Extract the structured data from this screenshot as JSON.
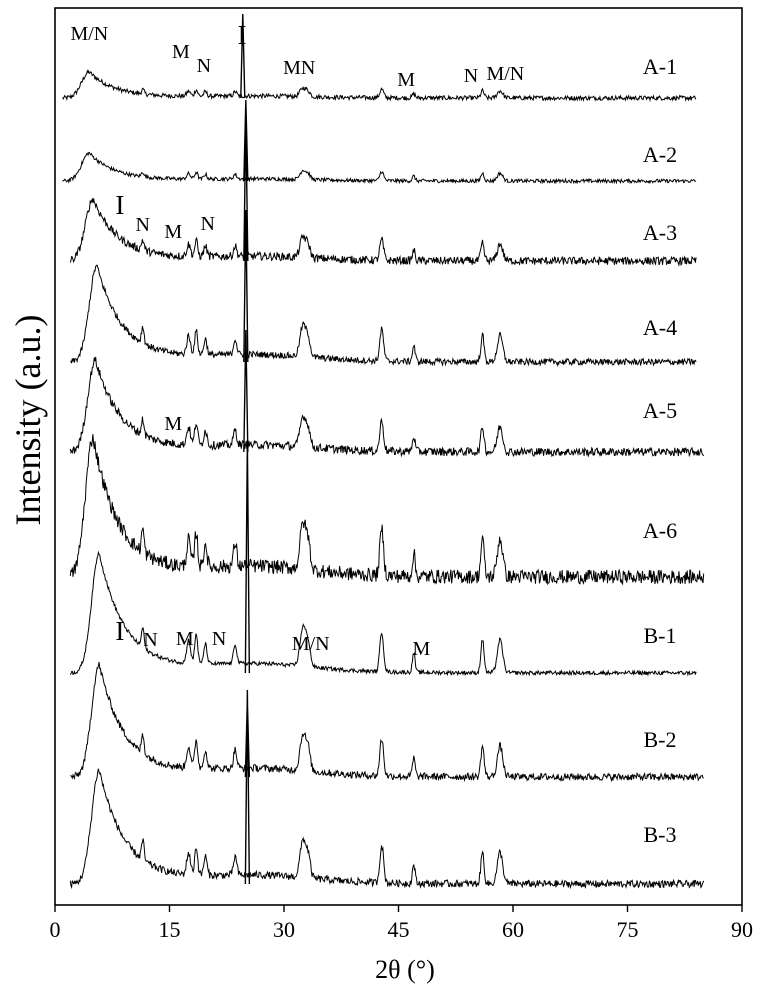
{
  "chart_data": {
    "type": "line",
    "title": "",
    "xlabel": "2θ (°)",
    "ylabel": "Intensity (a.u.)",
    "xlim": [
      0,
      90
    ],
    "x_ticks": [
      0,
      15,
      30,
      45,
      60,
      75,
      90
    ],
    "y_ticks_shown": false,
    "grid": false,
    "legend": "none",
    "series": [
      {
        "name": "A-1",
        "x_range": [
          1,
          84
        ]
      },
      {
        "name": "A-2",
        "x_range": [
          1,
          84
        ]
      },
      {
        "name": "A-3",
        "x_range": [
          2,
          84
        ]
      },
      {
        "name": "A-4",
        "x_range": [
          2,
          84
        ]
      },
      {
        "name": "A-5",
        "x_range": [
          2,
          85
        ]
      },
      {
        "name": "A-6",
        "x_range": [
          2,
          85
        ]
      },
      {
        "name": "B-1",
        "x_range": [
          2,
          84
        ]
      },
      {
        "name": "B-2",
        "x_range": [
          2,
          85
        ]
      },
      {
        "name": "B-3",
        "x_range": [
          2,
          85
        ]
      }
    ],
    "annotations": [
      {
        "series": "A-1",
        "text": "M/N",
        "x": 4.5
      },
      {
        "series": "A-1",
        "text": "M",
        "x": 16.5
      },
      {
        "series": "A-1",
        "text": "N",
        "x": 19.5
      },
      {
        "series": "A-1",
        "text": "I",
        "x": 24.5
      },
      {
        "series": "A-1",
        "text": "MN",
        "x": 32
      },
      {
        "series": "A-1",
        "text": "M",
        "x": 46
      },
      {
        "series": "A-1",
        "text": "N",
        "x": 54.5
      },
      {
        "series": "A-1",
        "text": "M/N",
        "x": 59
      },
      {
        "series": "A-3",
        "text": "I",
        "x": 8.5
      },
      {
        "series": "A-3",
        "text": "N",
        "x": 11.5
      },
      {
        "series": "A-3",
        "text": "M",
        "x": 15.5
      },
      {
        "series": "A-3",
        "text": "N",
        "x": 20
      },
      {
        "series": "A-5",
        "text": "M",
        "x": 15.5
      },
      {
        "series": "B-1",
        "text": "I",
        "x": 8.5
      },
      {
        "series": "B-1",
        "text": "N",
        "x": 12.5
      },
      {
        "series": "B-1",
        "text": "M",
        "x": 17
      },
      {
        "series": "B-1",
        "text": "N",
        "x": 21.5
      },
      {
        "series": "B-1",
        "text": "M/N",
        "x": 33.5
      },
      {
        "series": "B-1",
        "text": "M",
        "x": 48
      }
    ]
  }
}
